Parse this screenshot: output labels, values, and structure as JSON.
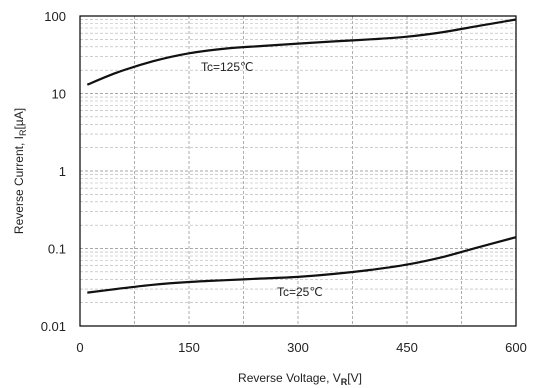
{
  "chart_data": {
    "type": "line",
    "xlabel_parts": [
      "Reverse Voltage, V",
      "R",
      "[V]"
    ],
    "ylabel_parts": [
      "Reverse Current, I",
      "R",
      "[µA]"
    ],
    "xlim": [
      0,
      600
    ],
    "ylim": [
      0.01,
      100
    ],
    "yscale": "log",
    "x_ticks": [
      0,
      150,
      300,
      450,
      600
    ],
    "x_tick_labels": [
      "0",
      "150",
      "300",
      "450",
      "600"
    ],
    "y_ticks": [
      0.01,
      0.1,
      1,
      10,
      100
    ],
    "y_tick_labels": [
      "0.01",
      "0.1",
      "1",
      "10",
      "100"
    ],
    "grid": true,
    "series": [
      {
        "name": "Tc=125℃",
        "x": [
          10,
          50,
          100,
          150,
          200,
          250,
          300,
          350,
          400,
          450,
          500,
          550,
          600
        ],
        "y": [
          13,
          18.5,
          26,
          33,
          38,
          41,
          44,
          47,
          50,
          54,
          62,
          75,
          90
        ]
      },
      {
        "name": "Tc=25℃",
        "x": [
          10,
          50,
          100,
          150,
          200,
          250,
          300,
          350,
          400,
          450,
          500,
          550,
          600
        ],
        "y": [
          0.027,
          0.03,
          0.034,
          0.037,
          0.039,
          0.041,
          0.043,
          0.047,
          0.053,
          0.062,
          0.078,
          0.105,
          0.14
        ]
      }
    ]
  }
}
